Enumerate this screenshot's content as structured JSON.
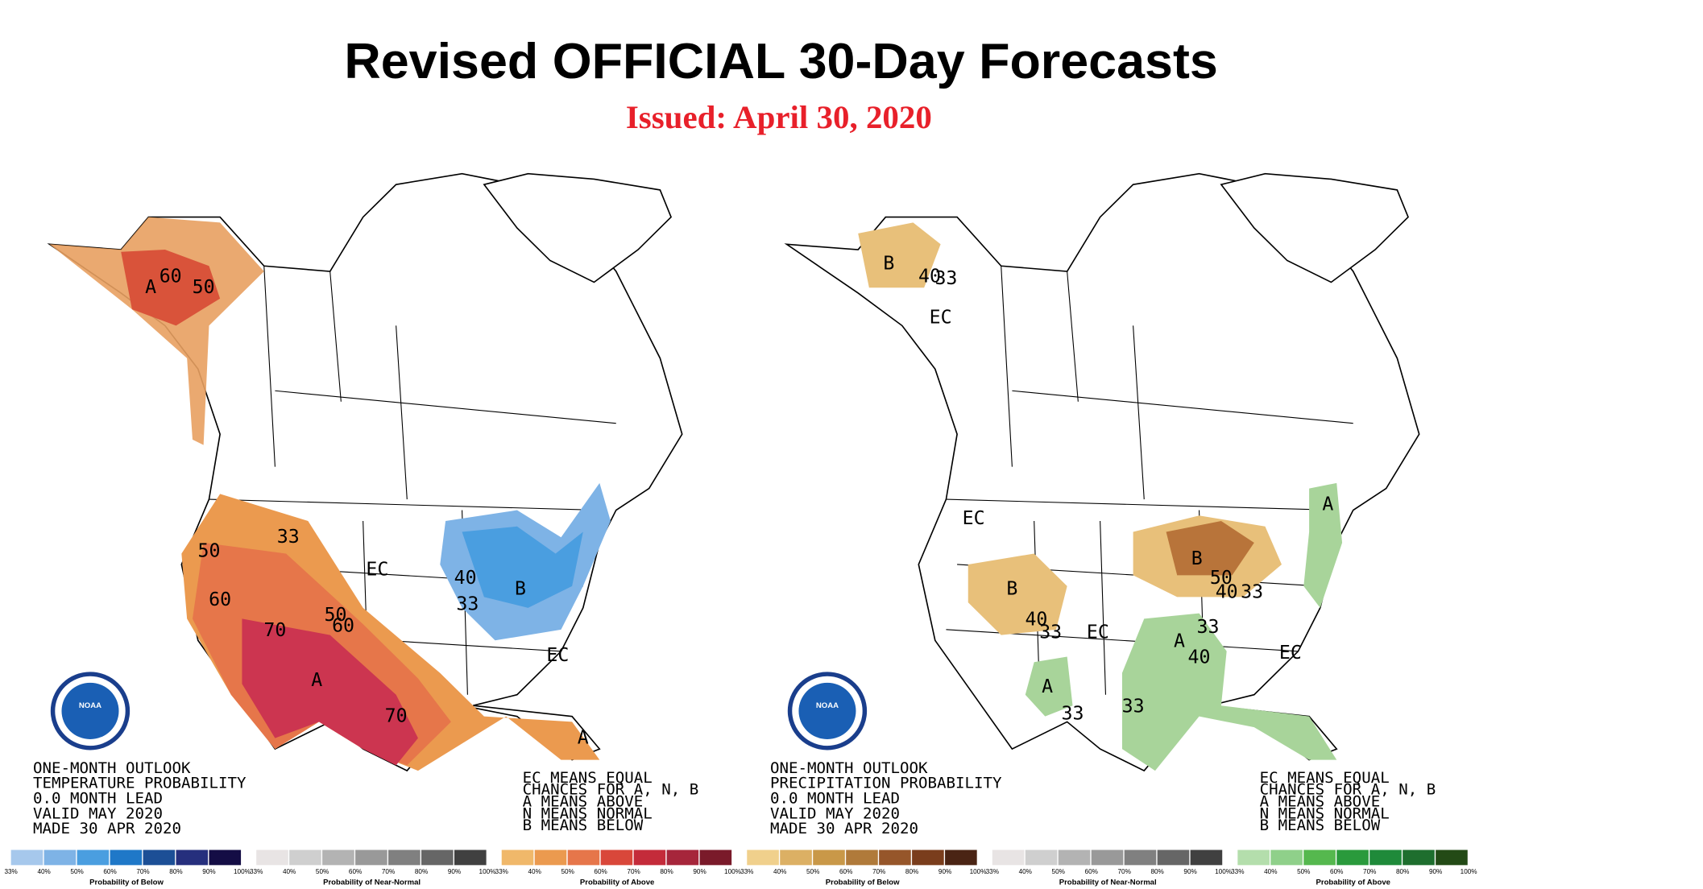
{
  "header": {
    "title": "Revised OFFICIAL 30-Day Forecasts",
    "subtitle": "Issued: April 30, 2020"
  },
  "maps": [
    {
      "logo": "NOAA",
      "info": [
        "ONE-MONTH OUTLOOK",
        "TEMPERATURE PROBABILITY",
        "0.0 MONTH LEAD",
        "VALID MAY 2020",
        "MADE 30 APR 2020"
      ],
      "key": [
        "EC MEANS EQUAL",
        "CHANCES FOR A, N, B",
        "A MEANS ABOVE",
        "N MEANS NORMAL",
        "B MEANS BELOW"
      ],
      "labels": [
        "A",
        "60",
        "50",
        "33",
        "50",
        "EC",
        "60",
        "70",
        "50",
        "60",
        "A",
        "70",
        "40",
        "B",
        "33",
        "EC",
        "A"
      ],
      "legends": [
        {
          "title": "Probability of Below",
          "ticks": [
            "33%",
            "40%",
            "50%",
            "60%",
            "70%",
            "80%",
            "90%",
            "100%"
          ],
          "colors": [
            "#a6c8ec",
            "#7eb3e6",
            "#4a9ee0",
            "#1f78c8",
            "#1c4f96",
            "#262f7d",
            "#140d45"
          ]
        },
        {
          "title": "Probability of Near-Normal",
          "ticks": [
            "33%",
            "40%",
            "50%",
            "60%",
            "70%",
            "80%",
            "90%",
            "100%"
          ],
          "colors": [
            "#e8e4e4",
            "#cfcfcf",
            "#b3b3b3",
            "#999999",
            "#808080",
            "#666666",
            "#404040"
          ]
        },
        {
          "title": "Probability of Above",
          "ticks": [
            "33%",
            "40%",
            "50%",
            "60%",
            "70%",
            "80%",
            "90%",
            "100%"
          ],
          "colors": [
            "#f0b86a",
            "#eb9a4f",
            "#e6764a",
            "#d9473a",
            "#c42b3a",
            "#a6263b",
            "#7a1a2a"
          ]
        }
      ]
    },
    {
      "logo": "NOAA",
      "info": [
        "ONE-MONTH OUTLOOK",
        "PRECIPITATION PROBABILITY",
        "0.0 MONTH LEAD",
        "VALID MAY 2020",
        "MADE 30 APR 2020"
      ],
      "key": [
        "EC MEANS EQUAL",
        "CHANCES FOR A, N, B",
        "A MEANS ABOVE",
        "N MEANS NORMAL",
        "B MEANS BELOW"
      ],
      "labels": [
        "B",
        "40",
        "33",
        "EC",
        "EC",
        "B",
        "40",
        "33",
        "EC",
        "B",
        "50",
        "40",
        "33",
        "A",
        "33",
        "40",
        "A",
        "33",
        "33",
        "EC",
        "A"
      ],
      "legends": [
        {
          "title": "Probability of Below",
          "ticks": [
            "33%",
            "40%",
            "50%",
            "60%",
            "70%",
            "80%",
            "90%",
            "100%"
          ],
          "colors": [
            "#f0d08c",
            "#dcb064",
            "#c99848",
            "#b07a3a",
            "#96562a",
            "#7a3d1c",
            "#4a2414"
          ]
        },
        {
          "title": "Probability of Near-Normal",
          "ticks": [
            "33%",
            "40%",
            "50%",
            "60%",
            "70%",
            "80%",
            "90%",
            "100%"
          ],
          "colors": [
            "#e8e4e4",
            "#cfcfcf",
            "#b3b3b3",
            "#999999",
            "#808080",
            "#666666",
            "#404040"
          ]
        },
        {
          "title": "Probability of Above",
          "ticks": [
            "33%",
            "40%",
            "50%",
            "60%",
            "70%",
            "80%",
            "90%",
            "100%"
          ],
          "colors": [
            "#b4deac",
            "#8fd08a",
            "#55b84e",
            "#2a9a3c",
            "#1f8a3a",
            "#1e6e2e",
            "#234a16"
          ]
        }
      ]
    }
  ]
}
